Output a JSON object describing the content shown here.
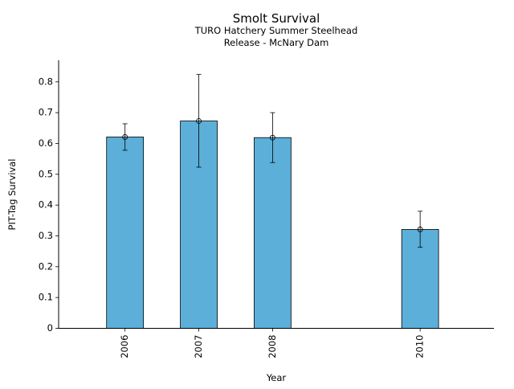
{
  "chart_data": {
    "type": "bar",
    "title": "Smolt Survival",
    "subtitle_lines": [
      "TURO Hatchery Summer Steelhead",
      "Release - McNary Dam"
    ],
    "xlabel": "Year",
    "ylabel": "PIT-Tag Survival",
    "x": [
      2006,
      2007,
      2008,
      2010
    ],
    "categories": [
      "2006",
      "2007",
      "2008",
      "2010"
    ],
    "values": [
      0.621,
      0.673,
      0.619,
      0.321
    ],
    "error_low": [
      0.578,
      0.523,
      0.538,
      0.263
    ],
    "error_high": [
      0.664,
      0.824,
      0.7,
      0.38
    ],
    "xlim": [
      2005.1,
      2011.0
    ],
    "ylim": [
      0,
      0.87
    ],
    "yticks": [
      0,
      0.1,
      0.2,
      0.3,
      0.4,
      0.5,
      0.6,
      0.7,
      0.8
    ],
    "ytick_labels": [
      "0",
      "0.1",
      "0.2",
      "0.3",
      "0.4",
      "0.5",
      "0.6",
      "0.7",
      "0.8"
    ],
    "bar_color": "#5bafd8",
    "grid": false,
    "legend": "none"
  }
}
